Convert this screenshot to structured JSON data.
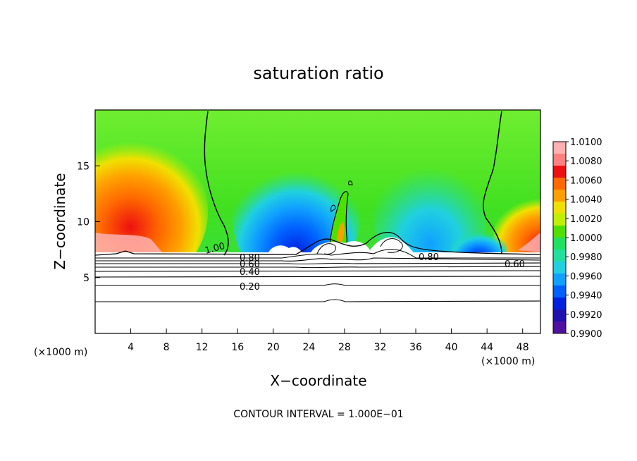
{
  "chart_data": {
    "type": "heatmap",
    "title": "saturation ratio",
    "xlabel": "X−coordinate",
    "ylabel": "Z−coordinate",
    "x_unit": "(×1000 m)",
    "xlim": [
      0,
      50
    ],
    "ylim": [
      0,
      20
    ],
    "x_ticks": [
      4,
      8,
      12,
      16,
      20,
      24,
      28,
      32,
      36,
      40,
      44,
      48
    ],
    "x_tick_labels": [
      "4",
      "8",
      "12",
      "16",
      "20",
      "24",
      "28",
      "32",
      "36",
      "40",
      "44",
      "48"
    ],
    "y_ticks": [
      5,
      10,
      15
    ],
    "y_tick_labels": [
      "5",
      "10",
      "15"
    ],
    "colorbar": {
      "min": 0.99,
      "max": 1.01,
      "labels": [
        "1.0100",
        "1.0080",
        "1.0060",
        "1.0040",
        "1.0020",
        "1.0000",
        "0.9980",
        "0.9960",
        "0.9940",
        "0.9920",
        "0.9900"
      ],
      "colors": [
        "#ffb0b0",
        "#ff8080",
        "#ee1010",
        "#ff6a00",
        "#ffa000",
        "#f0e000",
        "#c0f000",
        "#50e000",
        "#20e060",
        "#20e0a0",
        "#20d0e0",
        "#10a0ff",
        "#0060ff",
        "#0020e0",
        "#2010b0",
        "#5010a0"
      ]
    },
    "contour_labels": [
      "1.00",
      "0.80",
      "0.60",
      "0.40",
      "0.20",
      "0.80",
      "0.60"
    ],
    "contour_interval": "CONTOUR INTERVAL = 1.000E−01",
    "grid": false
  }
}
